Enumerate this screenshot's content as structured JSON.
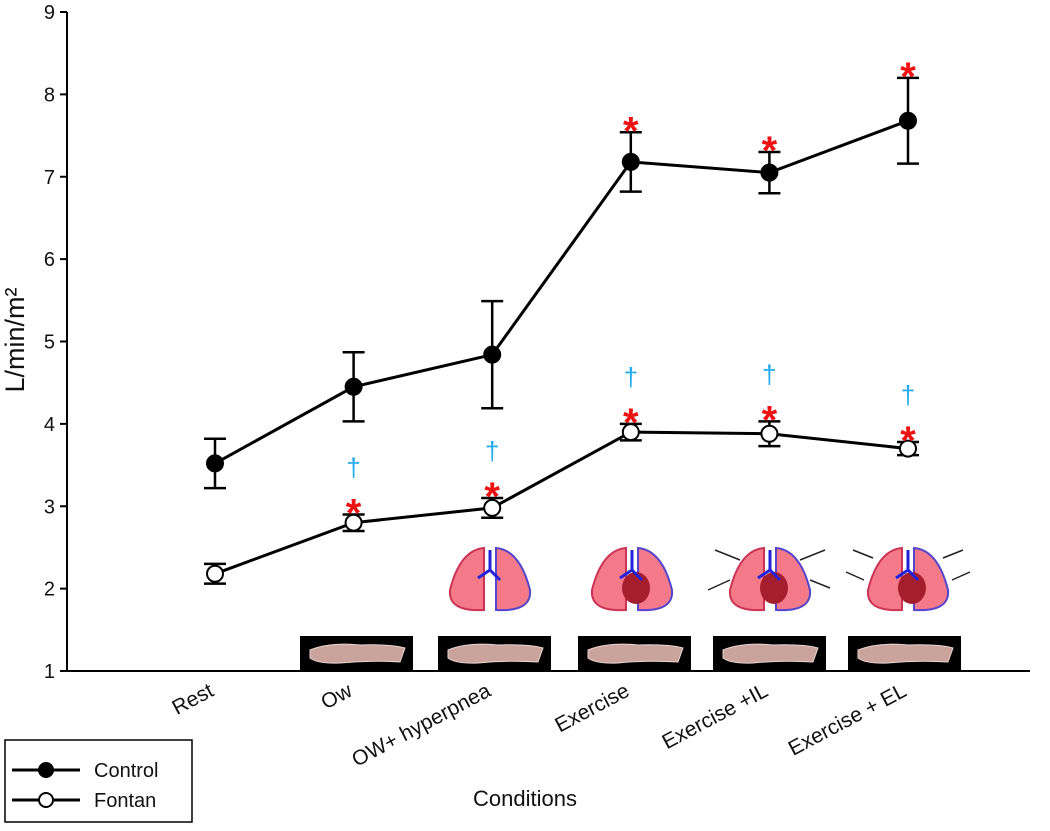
{
  "chart_data": {
    "type": "line",
    "ylabel": "L/min/m²",
    "xlabel": "Conditions",
    "categories": [
      "Rest",
      "Ow",
      "OW+ hyperpnea",
      "Exercise",
      "Exercise +IL",
      "Exercise + EL"
    ],
    "ylim": [
      1,
      9
    ],
    "yticks": [
      1,
      2,
      3,
      4,
      5,
      6,
      7,
      8,
      9
    ],
    "series": [
      {
        "name": "Control",
        "color": "#000000",
        "marker_fill": "#000000",
        "values": [
          3.52,
          4.45,
          4.84,
          7.18,
          7.05,
          7.68
        ],
        "errors": [
          0.3,
          0.42,
          0.65,
          0.36,
          0.25,
          0.52
        ],
        "markers": [
          null,
          null,
          null,
          "*",
          "*",
          "*"
        ]
      },
      {
        "name": "Fontan",
        "color": "#000000",
        "marker_fill": "#ffffff",
        "values": [
          2.18,
          2.8,
          2.98,
          3.9,
          3.88,
          3.7
        ],
        "errors": [
          0.12,
          0.1,
          0.12,
          0.1,
          0.15,
          0.08
        ],
        "markers": [
          null,
          "*",
          "*",
          "*",
          "*",
          "*"
        ],
        "markers2": [
          null,
          "†",
          "†",
          "†",
          "†",
          "†"
        ]
      }
    ],
    "marker_color": "#ee1111",
    "marker2_color": "#22aaee",
    "legend": "lower-left"
  }
}
